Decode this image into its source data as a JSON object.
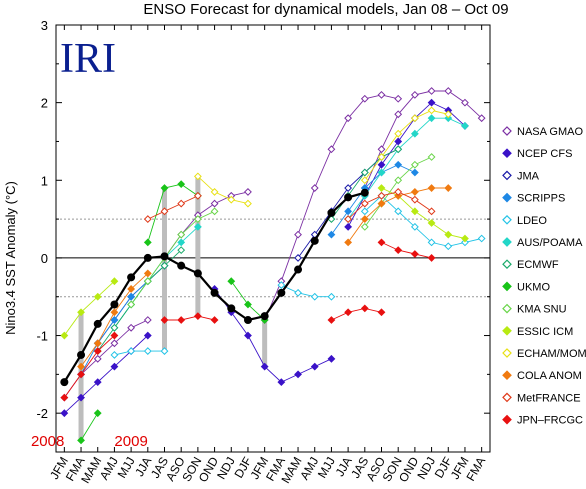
{
  "chart_data": {
    "type": "line",
    "title": "ENSO Forecast for dynamical models, Jan 08 – Oct 09",
    "logo_text": "IRI",
    "ylabel": "Nino3.4 SST Anomaly (°C)",
    "xlabel": "",
    "ylim": [
      -2.5,
      3
    ],
    "yticks": [
      -2,
      -1,
      0,
      1,
      2,
      3
    ],
    "ref_lines": [
      0.5,
      -0.5
    ],
    "year_labels": [
      {
        "text": "2008",
        "at": "JA"
      },
      {
        "text": "2009",
        "at": "MJJ"
      }
    ],
    "categories": [
      "JFM",
      "FMA",
      "MAM",
      "AMJ",
      "MJJ",
      "JJA",
      "JAS",
      "ASO",
      "SON",
      "OND",
      "NDJ",
      "DJF",
      "JFM",
      "FMA",
      "MAM",
      "AMJ",
      "MJJ",
      "JJA",
      "JAS",
      "ASO",
      "SON",
      "OND",
      "NDJ",
      "DJF",
      "JFM",
      "FMA"
    ],
    "observed": {
      "name": "",
      "color": "#000000",
      "start": 0,
      "values": [
        -1.6,
        -1.25,
        -0.85,
        -0.6,
        -0.25,
        0.0,
        0.02,
        -0.1,
        -0.2,
        -0.45,
        -0.65,
        -0.8,
        -0.75,
        -0.45,
        -0.15,
        0.22,
        0.58,
        0.78,
        0.84
      ]
    },
    "series": [
      {
        "name": "NASA GMAO",
        "color": "#7b2fa3",
        "marker": "diamond-open",
        "forecasts": [
          {
            "start": 0,
            "values": [
              -1.8,
              -1.5,
              -1.3,
              -1.1,
              -0.9,
              -0.8
            ]
          },
          {
            "start": 6,
            "values": [
              0.0,
              0.3,
              0.55,
              0.7,
              0.8,
              0.85
            ]
          },
          {
            "start": 12,
            "values": [
              -0.8,
              -0.3,
              0.3,
              0.9,
              1.4,
              1.8,
              2.05,
              2.1,
              2.05
            ]
          },
          {
            "start": 18,
            "values": [
              0.9,
              1.4,
              1.85,
              2.1,
              2.15,
              2.15,
              2.0,
              1.8
            ]
          }
        ]
      },
      {
        "name": "NCEP CFS",
        "color": "#3a12c8",
        "marker": "diamond",
        "forecasts": [
          {
            "start": 0,
            "values": [
              -2.0,
              -1.8,
              -1.6,
              -1.4,
              -1.2,
              -1.0
            ]
          },
          {
            "start": 9,
            "values": [
              -0.4,
              -0.7,
              -1.0,
              -1.4,
              -1.6,
              -1.5,
              -1.4,
              -1.3
            ]
          },
          {
            "start": 17,
            "values": [
              0.4,
              0.8,
              1.2,
              1.5,
              1.8,
              2.0,
              1.9,
              1.7
            ]
          }
        ]
      },
      {
        "name": "JMA",
        "color": "#1a1aa8",
        "marker": "diamond-open",
        "forecasts": [
          {
            "start": 2,
            "values": [
              -1.1,
              -0.8,
              -0.5,
              -0.3,
              -0.1
            ]
          },
          {
            "start": 14,
            "values": [
              0.0,
              0.3,
              0.6,
              0.9,
              1.1,
              1.3,
              1.4
            ]
          }
        ]
      },
      {
        "name": "SCRIPPS",
        "color": "#1e88e5",
        "marker": "diamond",
        "forecasts": [
          {
            "start": 1,
            "values": [
              -1.5,
              -1.1,
              -0.8,
              -0.5,
              -0.3,
              -0.1
            ]
          },
          {
            "start": 16,
            "values": [
              0.3,
              0.6,
              0.9,
              1.1,
              1.2,
              1.1
            ]
          }
        ]
      },
      {
        "name": "LDEO",
        "color": "#22c3e6",
        "marker": "diamond-open",
        "forecasts": [
          {
            "start": 3,
            "values": [
              -1.25,
              -1.2,
              -1.2,
              -1.2
            ]
          },
          {
            "start": 13,
            "values": [
              -0.35,
              -0.45,
              -0.5,
              -0.5
            ]
          },
          {
            "start": 18,
            "values": [
              0.6,
              0.8,
              0.6,
              0.4,
              0.2,
              0.15,
              0.2,
              0.25
            ]
          }
        ]
      },
      {
        "name": "AUS/POAMA",
        "color": "#22d6c8",
        "marker": "diamond",
        "forecasts": [
          {
            "start": 3,
            "values": [
              -0.9,
              -0.6,
              -0.3,
              0.0,
              0.2,
              0.4
            ]
          },
          {
            "start": 17,
            "values": [
              0.5,
              0.8,
              1.1,
              1.4,
              1.6,
              1.8,
              1.8,
              1.7
            ]
          }
        ]
      },
      {
        "name": "ECMWF",
        "color": "#1aaa6a",
        "marker": "diamond-open",
        "forecasts": [
          {
            "start": 2,
            "values": [
              -1.2,
              -0.9,
              -0.6,
              -0.3,
              -0.1,
              0.1
            ]
          },
          {
            "start": 16,
            "values": [
              0.5,
              0.8,
              1.1,
              1.3,
              1.4
            ]
          }
        ]
      },
      {
        "name": "UKMO",
        "color": "#19c419",
        "marker": "diamond",
        "forecasts": [
          {
            "start": 1,
            "values": [
              -2.35,
              -2.0
            ]
          },
          {
            "start": 5,
            "values": [
              0.2,
              0.9,
              0.95,
              0.8
            ]
          },
          {
            "start": 10,
            "values": [
              -0.3,
              -0.6,
              -0.8
            ]
          }
        ]
      },
      {
        "name": "KMA SNU",
        "color": "#6ad54a",
        "marker": "diamond-open",
        "forecasts": [
          {
            "start": 4,
            "values": [
              -0.6,
              -0.3,
              0.0,
              0.3,
              0.5,
              0.6
            ]
          },
          {
            "start": 18,
            "values": [
              0.4,
              0.7,
              1.0,
              1.2,
              1.3
            ]
          }
        ]
      },
      {
        "name": "ESSIC ICM",
        "color": "#b8ea12",
        "marker": "diamond",
        "forecasts": [
          {
            "start": 0,
            "values": [
              -1.0,
              -0.7,
              -0.5,
              -0.3
            ]
          },
          {
            "start": 19,
            "values": [
              0.9,
              0.8,
              0.6,
              0.45,
              0.3,
              0.25
            ]
          }
        ]
      },
      {
        "name": "ECHAM/MOM",
        "color": "#e8e012",
        "marker": "diamond-open",
        "forecasts": [
          {
            "start": 8,
            "values": [
              1.05,
              0.85,
              0.75,
              0.7
            ]
          },
          {
            "start": 18,
            "values": [
              1.0,
              1.3,
              1.6,
              1.8,
              1.9,
              1.85
            ]
          }
        ]
      },
      {
        "name": "COLA ANOM",
        "color": "#f07a10",
        "marker": "diamond",
        "forecasts": [
          {
            "start": 1,
            "values": [
              -1.4,
              -1.1,
              -0.7,
              -0.4,
              -0.2
            ]
          },
          {
            "start": 17,
            "values": [
              0.2,
              0.5,
              0.7,
              0.8,
              0.85,
              0.9,
              0.9
            ]
          }
        ]
      },
      {
        "name": "MetFRANCE",
        "color": "#e03a1a",
        "marker": "diamond-open",
        "forecasts": [
          {
            "start": 5,
            "values": [
              0.5,
              0.6,
              0.7,
              0.8
            ]
          },
          {
            "start": 17,
            "values": [
              0.5,
              0.7,
              0.8,
              0.85,
              0.75,
              0.6
            ]
          }
        ]
      },
      {
        "name": "JPN–FRCGC",
        "color": "#e81010",
        "marker": "diamond",
        "forecasts": [
          {
            "start": 0,
            "values": [
              -1.8,
              -1.5,
              -1.2,
              -1.0
            ]
          },
          {
            "start": 6,
            "values": [
              -0.8,
              -0.8,
              -0.75,
              -0.8
            ]
          },
          {
            "start": 16,
            "values": [
              -0.8,
              -0.7,
              -0.65,
              -0.7
            ]
          },
          {
            "start": 19,
            "values": [
              0.2,
              0.1,
              0.05,
              0.0
            ]
          }
        ]
      }
    ]
  }
}
